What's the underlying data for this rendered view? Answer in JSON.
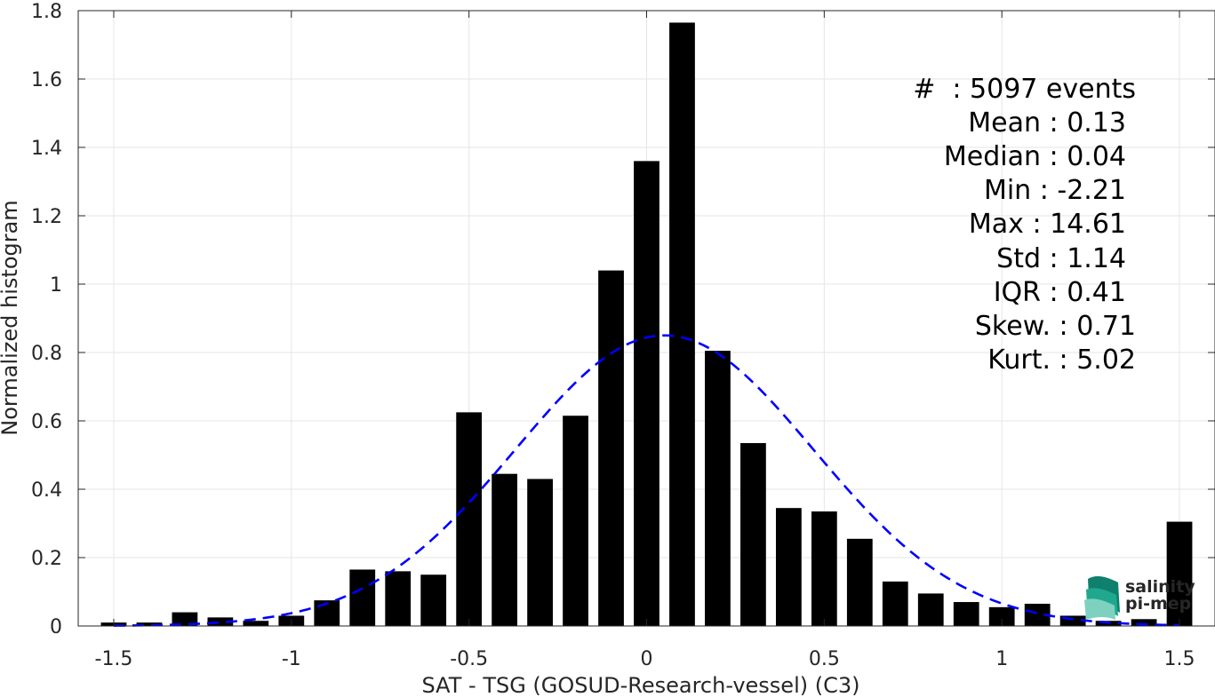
{
  "chart_data": {
    "type": "bar",
    "xlabel": "SAT - TSG (GOSUD-Research-vessel) (C3)",
    "ylabel": "Normalized histogram",
    "xlim": [
      -1.6,
      1.6
    ],
    "ylim": [
      0,
      1.8
    ],
    "grid": true,
    "x_ticks": [
      -1.5,
      -1,
      -0.5,
      0,
      0.5,
      1,
      1.5
    ],
    "x_tick_labels": [
      "-1.5",
      "-1",
      "-0.5",
      "0",
      "0.5",
      "1",
      "1.5"
    ],
    "y_ticks": [
      0,
      0.2,
      0.4,
      0.6,
      0.8,
      1,
      1.2,
      1.4,
      1.6,
      1.8
    ],
    "y_tick_labels": [
      "0",
      "0.2",
      "0.4",
      "0.6",
      "0.8",
      "1",
      "1.2",
      "1.4",
      "1.6",
      "1.8"
    ],
    "bin_width": 0.1,
    "bar_color": "#000000",
    "bins": [
      {
        "x": -1.5,
        "value": 0.01
      },
      {
        "x": -1.4,
        "value": 0.01
      },
      {
        "x": -1.3,
        "value": 0.04
      },
      {
        "x": -1.2,
        "value": 0.025
      },
      {
        "x": -1.1,
        "value": 0.015
      },
      {
        "x": -1.0,
        "value": 0.03
      },
      {
        "x": -0.9,
        "value": 0.075
      },
      {
        "x": -0.8,
        "value": 0.165
      },
      {
        "x": -0.7,
        "value": 0.16
      },
      {
        "x": -0.6,
        "value": 0.15
      },
      {
        "x": -0.5,
        "value": 0.625
      },
      {
        "x": -0.4,
        "value": 0.445
      },
      {
        "x": -0.3,
        "value": 0.43
      },
      {
        "x": -0.2,
        "value": 0.615
      },
      {
        "x": -0.1,
        "value": 1.04
      },
      {
        "x": 0.0,
        "value": 1.36
      },
      {
        "x": 0.1,
        "value": 1.765
      },
      {
        "x": 0.2,
        "value": 0.805
      },
      {
        "x": 0.3,
        "value": 0.535
      },
      {
        "x": 0.4,
        "value": 0.345
      },
      {
        "x": 0.5,
        "value": 0.335
      },
      {
        "x": 0.6,
        "value": 0.255
      },
      {
        "x": 0.7,
        "value": 0.13
      },
      {
        "x": 0.8,
        "value": 0.095
      },
      {
        "x": 0.9,
        "value": 0.07
      },
      {
        "x": 1.0,
        "value": 0.055
      },
      {
        "x": 1.1,
        "value": 0.065
      },
      {
        "x": 1.2,
        "value": 0.03
      },
      {
        "x": 1.3,
        "value": 0.015
      },
      {
        "x": 1.4,
        "value": 0.02
      },
      {
        "x": 1.5,
        "value": 0.305
      }
    ],
    "fit_curve": {
      "type": "gaussian",
      "mean": 0.05,
      "sigma": 0.42,
      "peak": 0.85,
      "color": "#0000ff",
      "style": "dashed"
    },
    "annotations": [
      "#  : 5097 events",
      "Mean : 0.13",
      "Median : 0.04",
      "Min : -2.21",
      "Max : 14.61",
      "Std : 1.14",
      "IQR : 0.41",
      "Skew. : 0.71",
      "Kurt. : 5.02"
    ]
  },
  "logo": {
    "line1": "salinity",
    "line2": "pi-mep",
    "color": "#1aa58f"
  }
}
